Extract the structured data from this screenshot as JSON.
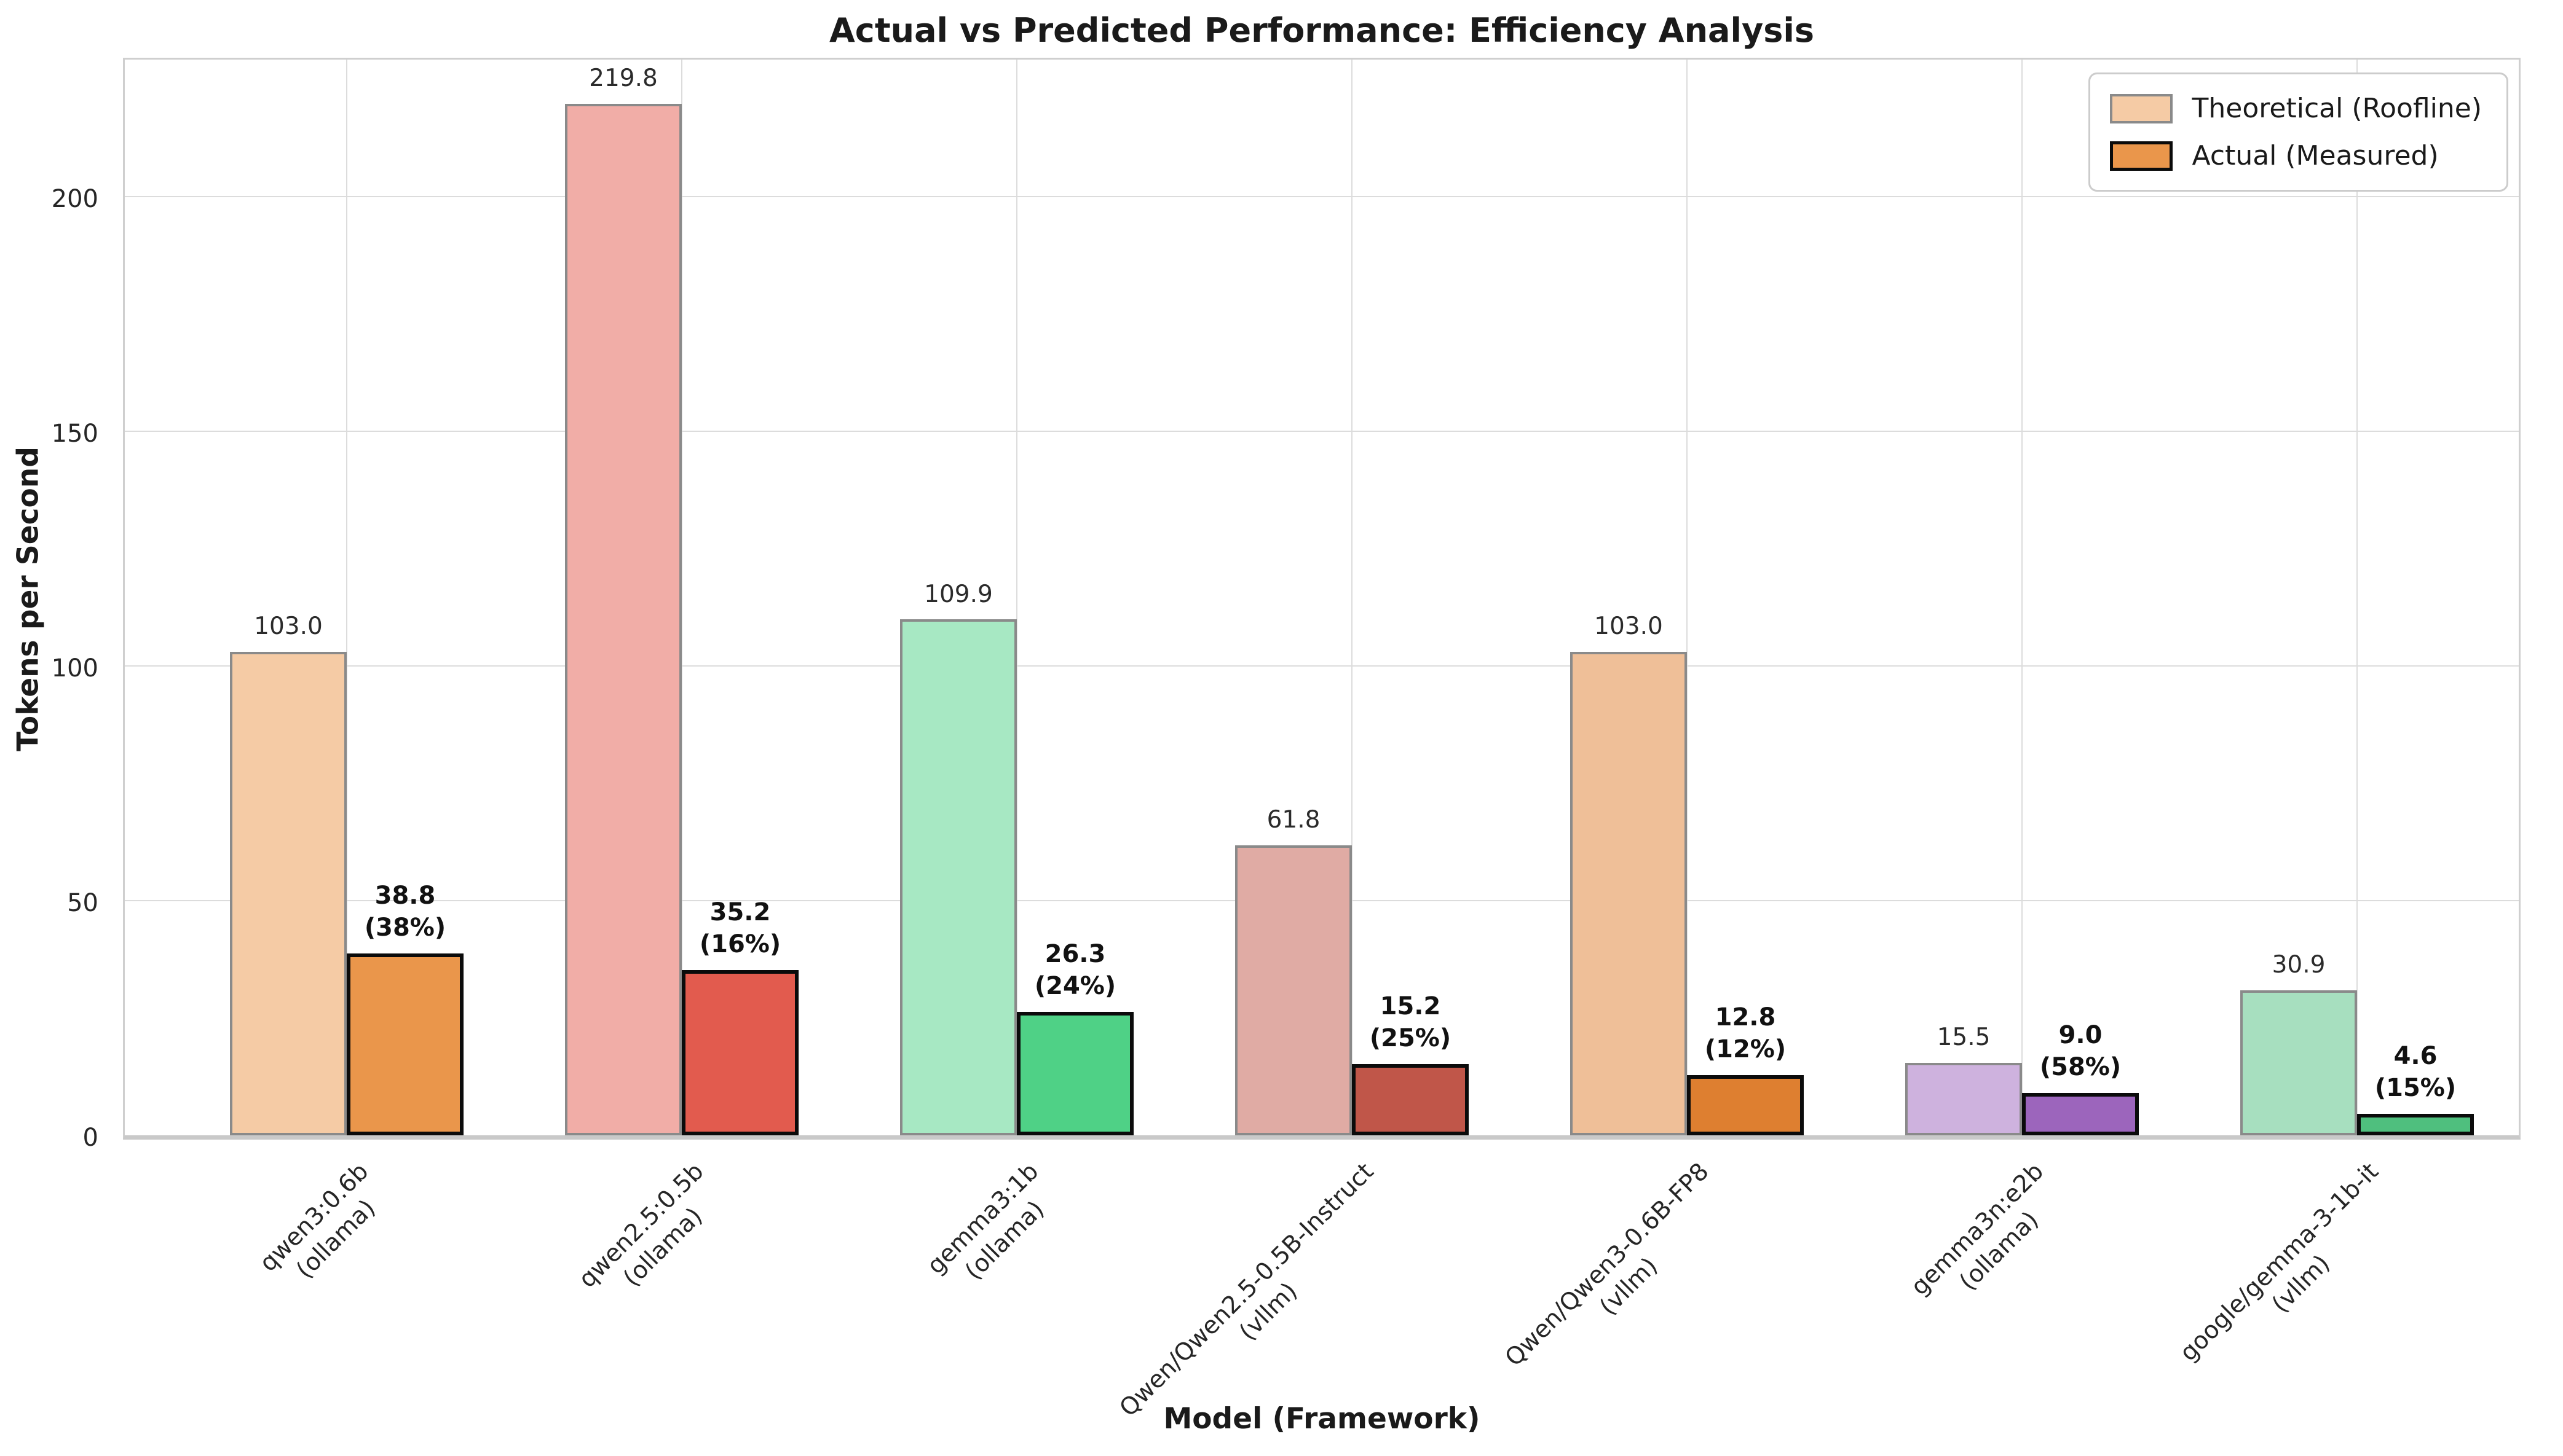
{
  "title": "Actual vs Predicted Performance: Efficiency Analysis",
  "legend": {
    "items": [
      {
        "label": "Theoretical (Roofline)",
        "fill": "#F5CBA5",
        "edge": "#8A8A8A"
      },
      {
        "label": "Actual (Measured)",
        "fill": "#EA964B",
        "edge": "#0B0B0B"
      }
    ]
  },
  "chart_data": {
    "type": "bar",
    "title": "Actual vs Predicted Performance: Efficiency Analysis",
    "xlabel": "Model (Framework)",
    "ylabel": "Tokens per Second",
    "ylim": [
      0,
      230.5
    ],
    "yticks": [
      0,
      50,
      100,
      150,
      200
    ],
    "grid": true,
    "legend_position": "upper right",
    "categories": [
      "qwen3:0.6b\n(ollama)",
      "qwen2.5:0.5b\n(ollama)",
      "gemma3:1b\n(ollama)",
      "Qwen/Qwen2.5-0.5B-Instruct\n(vllm)",
      "Qwen/Qwen3-0.6B-FP8\n(vllm)",
      "gemma3n:e2b\n(ollama)",
      "google/gemma-3-1b-it\n(vllm)"
    ],
    "series": [
      {
        "name": "Theoretical (Roofline)",
        "values": [
          103.0,
          219.8,
          109.9,
          61.8,
          103.0,
          15.5,
          30.9
        ],
        "labels": [
          "103.0",
          "219.8",
          "109.9",
          "61.8",
          "103.0",
          "15.5",
          "30.9"
        ],
        "colors": [
          "#F5CBA5",
          "#F1ADA7",
          "#A7E8C3",
          "#E0ABA4",
          "#EFBF98",
          "#CEB2DE",
          "#A7DFBF"
        ],
        "edge": "#8A8A8A"
      },
      {
        "name": "Actual (Measured)",
        "values": [
          38.8,
          35.2,
          26.3,
          15.2,
          12.8,
          9.0,
          4.6
        ],
        "labels": [
          "38.8\n(38%)",
          "35.2\n(16%)",
          "26.3\n(24%)",
          "15.2\n(25%)",
          "12.8\n(12%)",
          "9.0\n(58%)",
          "4.6\n(15%)"
        ],
        "colors": [
          "#EA964B",
          "#E25B4E",
          "#4FD186",
          "#C05649",
          "#DE7F30",
          "#9C65BC",
          "#4FBF7E"
        ],
        "edge": "#0B0B0B"
      }
    ],
    "efficiency_pct": [
      38,
      16,
      24,
      25,
      12,
      58,
      15
    ]
  }
}
